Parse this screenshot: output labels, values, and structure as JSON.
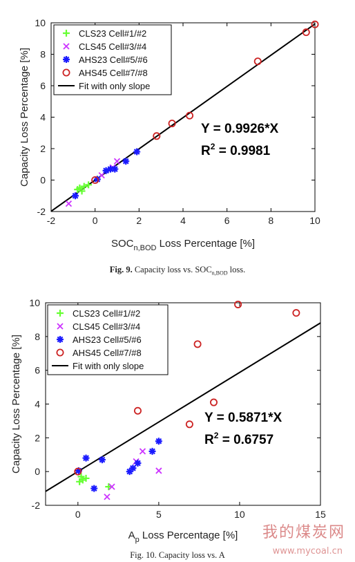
{
  "colors": {
    "cls23": "#66ff33",
    "cls45": "#cc33ff",
    "ahs23": "#1a1aff",
    "ahs45": "#cc2222",
    "fit": "#000000"
  },
  "captions": {
    "fig9_label": "Fig. 9.",
    "fig9_text_pre": "Capacity loss vs. SOC",
    "fig9_text_sub": "n,BOD",
    "fig9_text_post": " loss.",
    "fig10_text": "Fig. 10. Capacity loss vs. A"
  },
  "watermark": {
    "text": "我的煤炭网",
    "url": "www.mycoal.cn"
  },
  "chart_data": [
    {
      "type": "scatter",
      "ylabel": "Capacity Loss Percentage [%]",
      "xlabel_main": "SOC",
      "xlabel_sub": "n,BOD",
      "xlabel_rest": " Loss Percentage [%]",
      "xlim": [
        -2,
        10
      ],
      "ylim": [
        -2,
        10
      ],
      "xticks": [
        -2,
        0,
        2,
        4,
        6,
        8,
        10
      ],
      "yticks": [
        -2,
        0,
        2,
        4,
        6,
        8,
        10
      ],
      "legend_position": "top-left",
      "annotation_eq": "Y = 0.9926*X",
      "annotation_r2_prefix": "R",
      "annotation_r2_sup": "2",
      "annotation_r2_value": " = 0.9981",
      "fit": {
        "name": "Fit with only slope",
        "slope": 0.9926
      },
      "series": [
        {
          "name": "CLS23 Cell#1/#2",
          "marker": "plus",
          "points": [
            [
              -0.8,
              -0.6
            ],
            [
              -0.7,
              -0.5
            ],
            [
              -0.5,
              -0.4
            ],
            [
              -0.3,
              -0.3
            ],
            [
              -0.6,
              -0.7
            ]
          ]
        },
        {
          "name": "CLS45 Cell#3/#4",
          "marker": "x",
          "points": [
            [
              -1.2,
              -1.5
            ],
            [
              0.3,
              0.3
            ],
            [
              1.0,
              1.2
            ],
            [
              0.8,
              0.8
            ]
          ]
        },
        {
          "name": "AHS23 Cell#5/#6",
          "marker": "star",
          "points": [
            [
              -0.9,
              -1.0
            ],
            [
              0.5,
              0.6
            ],
            [
              0.7,
              0.7
            ],
            [
              0.9,
              0.7
            ],
            [
              1.4,
              1.2
            ],
            [
              1.9,
              1.8
            ],
            [
              0.1,
              0.05
            ]
          ]
        },
        {
          "name": "AHS45 Cell#7/#8",
          "marker": "circle",
          "points": [
            [
              0.0,
              0.0
            ],
            [
              2.8,
              2.8
            ],
            [
              3.5,
              3.6
            ],
            [
              4.3,
              4.1
            ],
            [
              7.4,
              7.55
            ],
            [
              9.6,
              9.4
            ],
            [
              10.0,
              9.9
            ]
          ]
        }
      ]
    },
    {
      "type": "scatter",
      "ylabel": "Capacity Loss Percentage [%]",
      "xlabel_main": "A",
      "xlabel_sub": "p",
      "xlabel_rest": " Loss Percentage [%]",
      "xlim": [
        -2,
        15
      ],
      "ylim": [
        -2,
        10
      ],
      "xticks": [
        0,
        5,
        10,
        15
      ],
      "yticks": [
        -2,
        0,
        2,
        4,
        6,
        8,
        10
      ],
      "legend_position": "top-left",
      "annotation_eq": "Y = 0.5871*X",
      "annotation_r2_prefix": "R",
      "annotation_r2_sup": "2",
      "annotation_r2_value": " = 0.6757",
      "fit": {
        "name": "Fit with only slope",
        "slope": 0.5871
      },
      "series": [
        {
          "name": "CLS23 Cell#1/#2",
          "marker": "plus",
          "points": [
            [
              0.1,
              -0.6
            ],
            [
              0.3,
              -0.5
            ],
            [
              0.5,
              -0.4
            ],
            [
              0.2,
              -0.3
            ],
            [
              1.9,
              -0.9
            ]
          ]
        },
        {
          "name": "CLS45 Cell#3/#4",
          "marker": "x",
          "points": [
            [
              1.8,
              -1.5
            ],
            [
              2.1,
              -0.9
            ],
            [
              3.6,
              0.6
            ],
            [
              4.0,
              1.2
            ],
            [
              5.0,
              0.05
            ]
          ]
        },
        {
          "name": "AHS23 Cell#5/#6",
          "marker": "star",
          "points": [
            [
              0.5,
              0.8
            ],
            [
              1.0,
              -1.0
            ],
            [
              1.5,
              0.7
            ],
            [
              3.2,
              0.0
            ],
            [
              3.4,
              0.2
            ],
            [
              3.7,
              0.5
            ],
            [
              4.6,
              1.2
            ],
            [
              5.0,
              1.8
            ],
            [
              0.05,
              0.05
            ]
          ]
        },
        {
          "name": "AHS45 Cell#7/#8",
          "marker": "circle",
          "points": [
            [
              0.0,
              0.0
            ],
            [
              3.7,
              3.6
            ],
            [
              6.9,
              2.8
            ],
            [
              7.4,
              7.55
            ],
            [
              8.4,
              4.1
            ],
            [
              9.9,
              9.9
            ],
            [
              13.5,
              9.4
            ]
          ]
        }
      ]
    }
  ]
}
